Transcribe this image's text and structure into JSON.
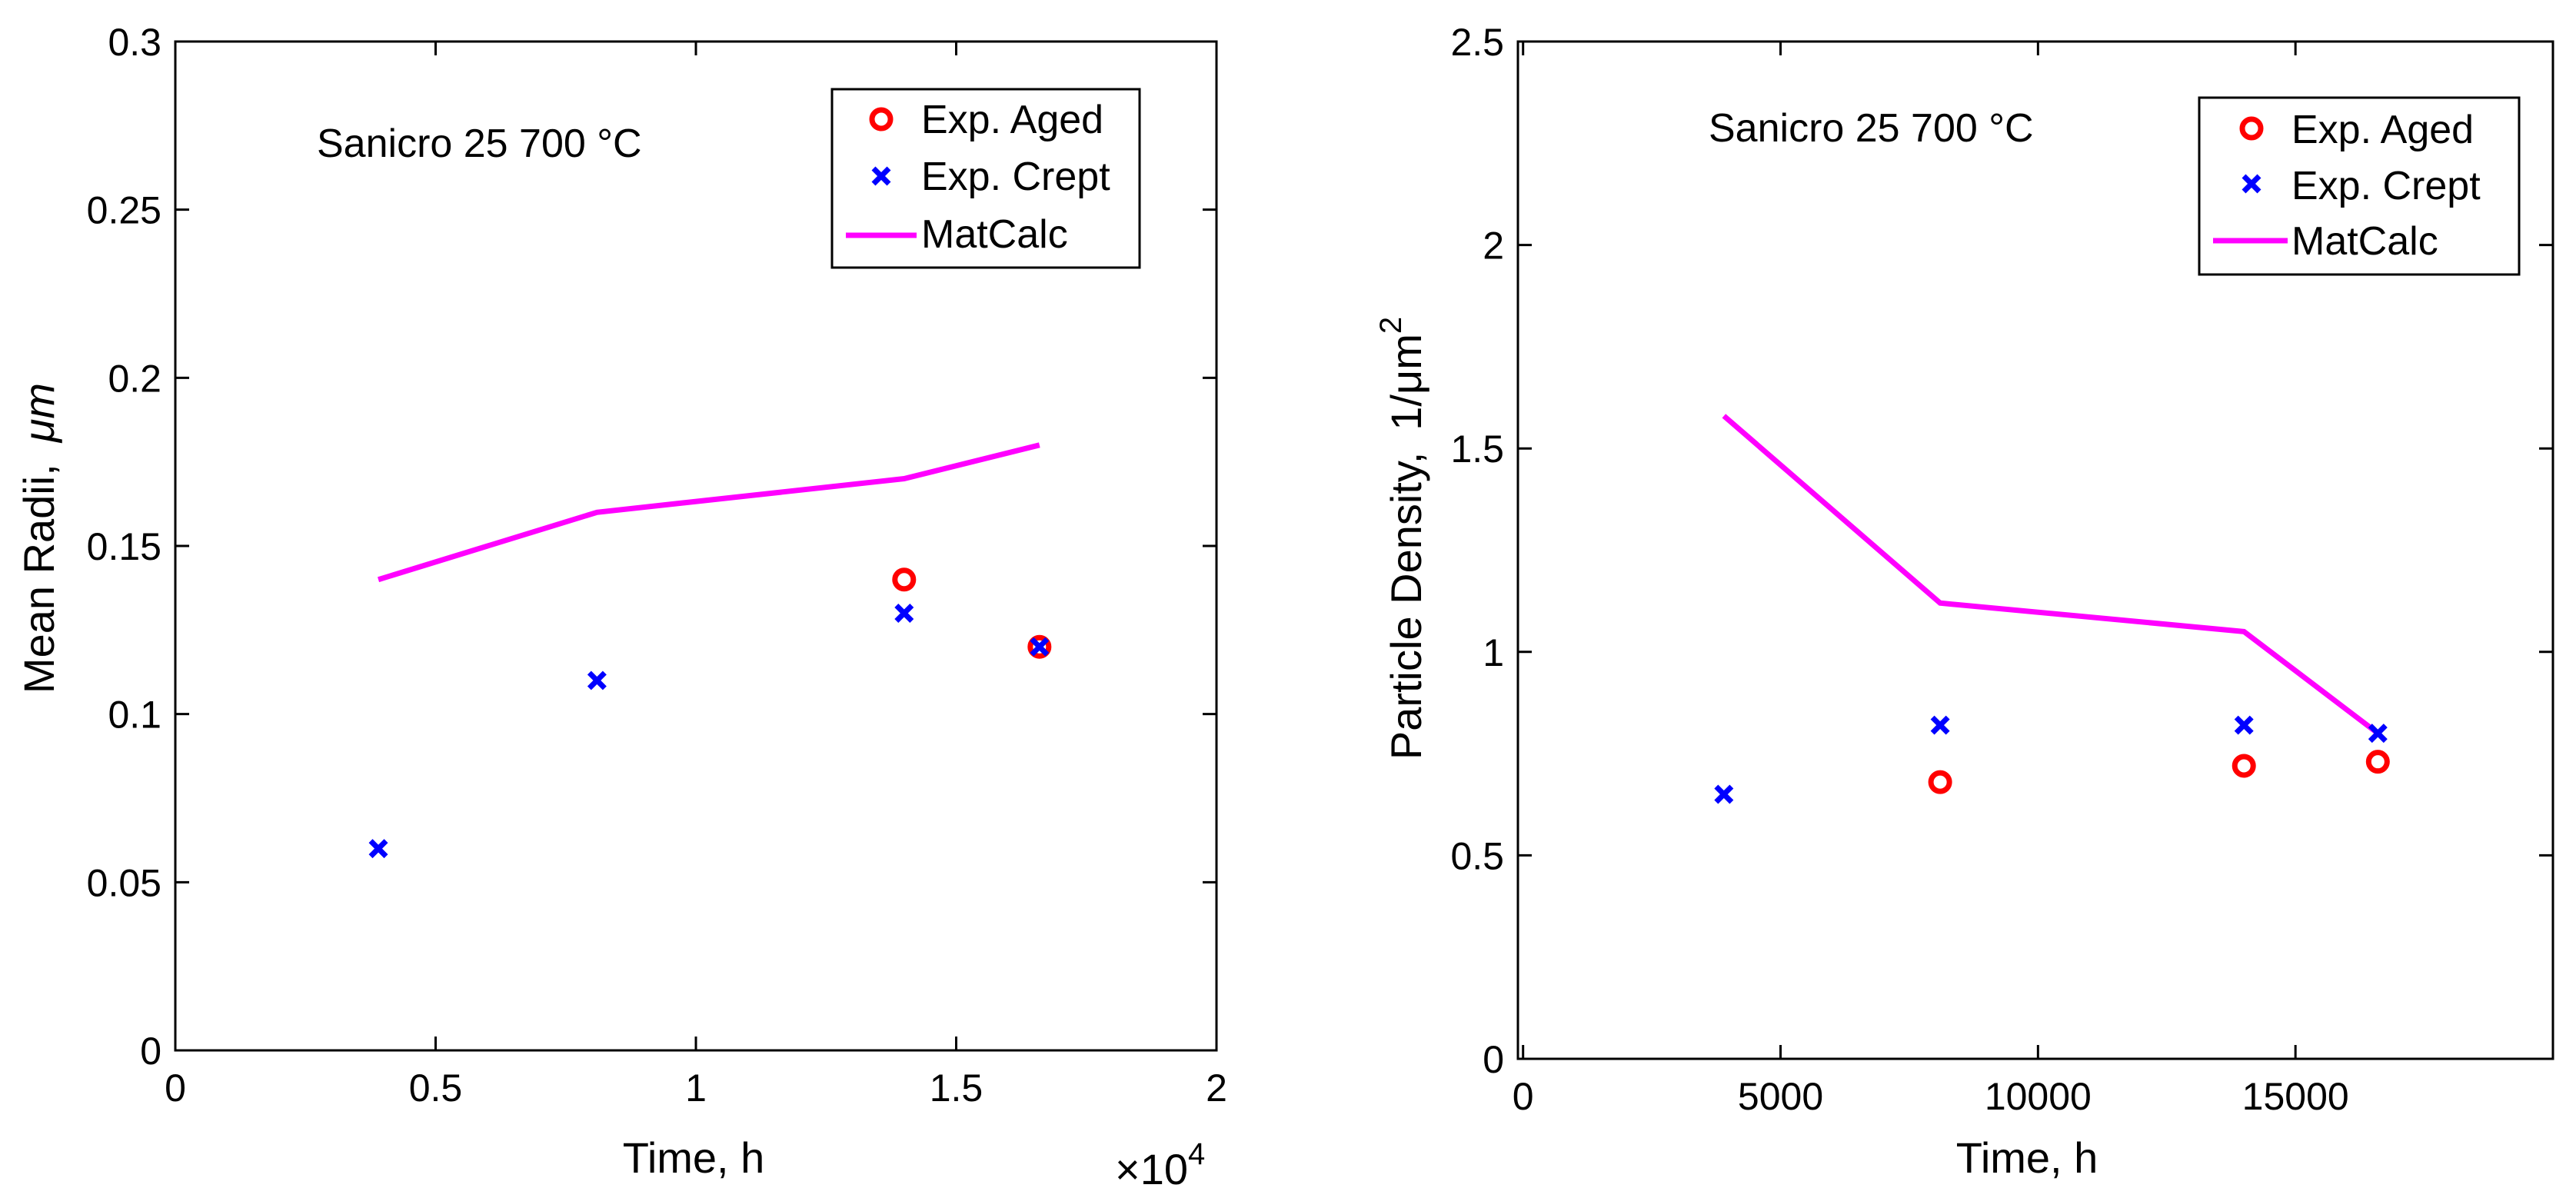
{
  "charts": [
    {
      "chart_data": {
        "type": "scatter",
        "annotation": "Sanicro 25 700 °C",
        "xlabel": "Time, h",
        "ylabel_main": "Mean Radii,",
        "ylabel_unit": "μm",
        "x_multiplier_label": "×10",
        "x_multiplier_exp": "4",
        "xlim": [
          0,
          20000
        ],
        "ylim": [
          0,
          0.3
        ],
        "x_ticks": [
          0,
          5000,
          10000,
          15000,
          20000
        ],
        "x_tick_labels": [
          "0",
          "0.5",
          "1",
          "1.5",
          "2"
        ],
        "y_ticks": [
          0,
          0.05,
          0.1,
          0.15,
          0.2,
          0.25,
          0.3
        ],
        "y_tick_labels": [
          "0",
          "0.05",
          "0.1",
          "0.15",
          "0.2",
          "0.25",
          "0.3"
        ],
        "legend_position": "top-right",
        "series": [
          {
            "name": "Exp. Aged",
            "kind": "circle",
            "color": "#ff0000",
            "x": [
              14000,
              16600
            ],
            "y": [
              0.14,
              0.12
            ]
          },
          {
            "name": "Exp. Crept",
            "kind": "cross",
            "color": "#0000ff",
            "x": [
              3900,
              8100,
              14000,
              16600
            ],
            "y": [
              0.06,
              0.11,
              0.13,
              0.12
            ]
          },
          {
            "name": "MatCalc",
            "kind": "line",
            "color": "#ff00ff",
            "x": [
              3900,
              8100,
              14000,
              16600
            ],
            "y": [
              0.14,
              0.16,
              0.17,
              0.18
            ]
          }
        ]
      }
    },
    {
      "chart_data": {
        "type": "scatter",
        "annotation": "Sanicro 25 700 °C",
        "xlabel": "Time, h",
        "ylabel_main": "Particle Density,",
        "ylabel_unit": "1/μm",
        "ylabel_exp": "2",
        "xlim": [
          -100,
          20000
        ],
        "ylim": [
          0,
          2.5
        ],
        "x_ticks": [
          0,
          5000,
          10000,
          15000
        ],
        "x_tick_labels": [
          "0",
          "5000",
          "10000",
          "15000"
        ],
        "y_ticks": [
          0,
          0.5,
          1,
          1.5,
          2,
          2.5
        ],
        "y_tick_labels": [
          "0",
          "0.5",
          "1",
          "1.5",
          "2",
          "2.5"
        ],
        "legend_position": "top-right",
        "series": [
          {
            "name": "Exp. Aged",
            "kind": "circle",
            "color": "#ff0000",
            "x": [
              8100,
              14000,
              16600
            ],
            "y": [
              0.68,
              0.72,
              0.73
            ]
          },
          {
            "name": "Exp. Crept",
            "kind": "cross",
            "color": "#0000ff",
            "x": [
              3900,
              8100,
              14000,
              16600
            ],
            "y": [
              0.65,
              0.82,
              0.82,
              0.8
            ]
          },
          {
            "name": "MatCalc",
            "kind": "line",
            "color": "#ff00ff",
            "x": [
              3900,
              8100,
              14000,
              16600
            ],
            "y": [
              1.58,
              1.12,
              1.05,
              0.8
            ]
          }
        ]
      }
    }
  ]
}
